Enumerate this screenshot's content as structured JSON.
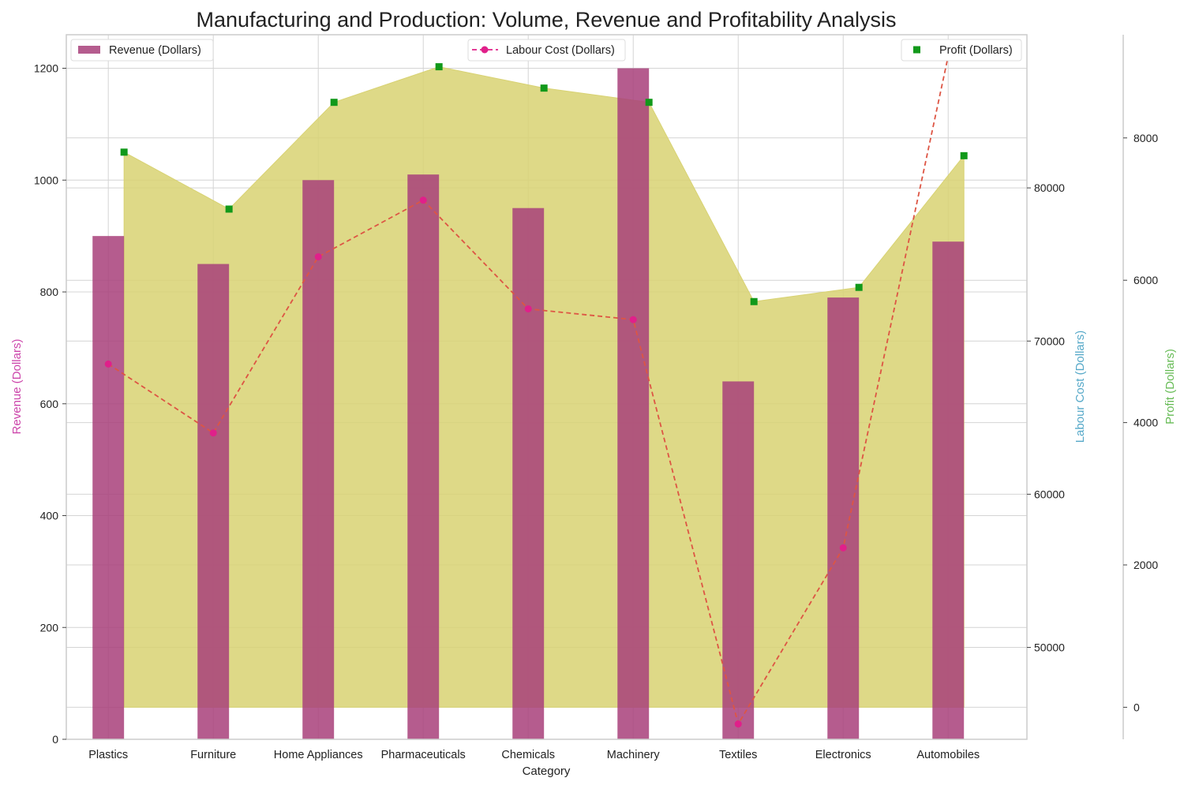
{
  "chart_data": {
    "type": "bar",
    "title": "Manufacturing and Production: Volume, Revenue and Profitability Analysis",
    "xlabel": "Category",
    "categories": [
      "Plastics",
      "Furniture",
      "Home Appliances",
      "Pharmaceuticals",
      "Chemicals",
      "Machinery",
      "Textiles",
      "Electronics",
      "Automobiles"
    ],
    "axes": {
      "revenue": {
        "label": "Revenue (Dollars)",
        "color": "#cc44aa",
        "ylim": [
          0,
          1260
        ],
        "ticks": [
          0,
          200,
          400,
          600,
          800,
          1000,
          1200
        ]
      },
      "labour": {
        "label": "Labour Cost (Dollars)",
        "color": "#55a8c8",
        "ylim": [
          44000,
          90000
        ],
        "ticks": [
          50000,
          60000,
          70000,
          80000
        ]
      },
      "profit": {
        "label": "Profit (Dollars)",
        "color": "#66bb55",
        "ylim": [
          -450,
          9450
        ],
        "ticks": [
          0,
          2000,
          4000,
          6000,
          8000
        ]
      }
    },
    "series": [
      {
        "name": "Revenue (Dollars)",
        "kind": "bar",
        "axis": "revenue",
        "color": "#a8407a",
        "values": [
          900,
          850,
          1000,
          1010,
          950,
          1200,
          640,
          790,
          890
        ]
      },
      {
        "name": "Labour Cost (Dollars)",
        "kind": "line",
        "axis": "labour",
        "color": "#e0208a",
        "linecolor": "#dd5544",
        "values": [
          68500,
          64000,
          75500,
          79200,
          72100,
          71400,
          45000,
          56500,
          88600
        ]
      },
      {
        "name": "Profit (Dollars)",
        "kind": "scatter",
        "axis": "profit",
        "color": "#11991a",
        "fill": "#d8d272",
        "values": [
          7800,
          7000,
          8500,
          9000,
          8700,
          8500,
          5700,
          5900,
          7750
        ]
      }
    ],
    "legends": [
      {
        "series": 0,
        "position": "top-left"
      },
      {
        "series": 1,
        "position": "top-center"
      },
      {
        "series": 2,
        "position": "top-right"
      }
    ],
    "grid": true
  }
}
